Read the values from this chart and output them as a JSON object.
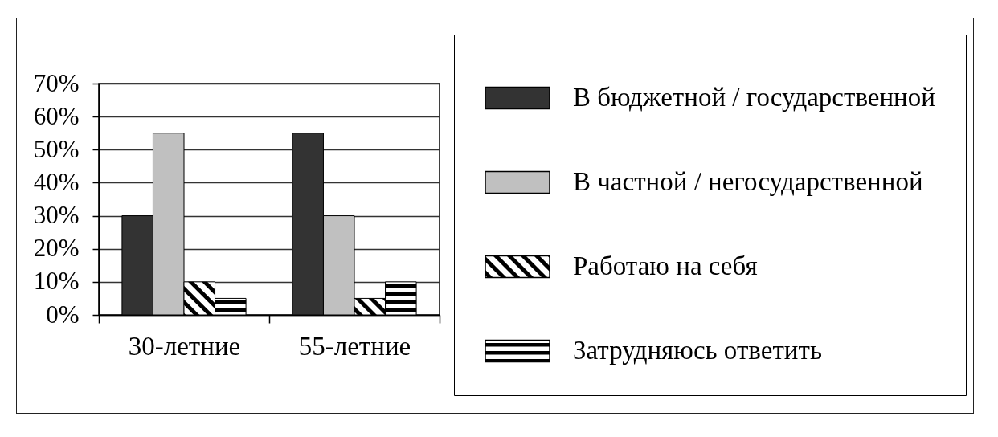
{
  "chart_data": {
    "type": "bar",
    "categories": [
      "30-летние",
      "55-летние"
    ],
    "series": [
      {
        "name": "В бюджетной / государственной",
        "color": "#333333",
        "values": [
          30,
          55
        ]
      },
      {
        "name": "В частной / негосударственной",
        "color": "#c0c0c0",
        "values": [
          55,
          30
        ]
      },
      {
        "name": "Работаю на себя",
        "color": "#000000",
        "values": [
          10,
          5
        ]
      },
      {
        "name": "Затрудняюсь ответить",
        "color": "#000000",
        "values": [
          5,
          10
        ]
      }
    ],
    "ylim": [
      0,
      70
    ],
    "yticks": [
      {
        "value": 0,
        "label": "0%"
      },
      {
        "value": 10,
        "label": "10%"
      },
      {
        "value": 20,
        "label": "20%"
      },
      {
        "value": 30,
        "label": "30%"
      },
      {
        "value": 40,
        "label": "40%"
      },
      {
        "value": 50,
        "label": "50%"
      },
      {
        "value": 60,
        "label": "60%"
      },
      {
        "value": 70,
        "label": "70%"
      }
    ],
    "grid": "y",
    "legend": "right"
  }
}
